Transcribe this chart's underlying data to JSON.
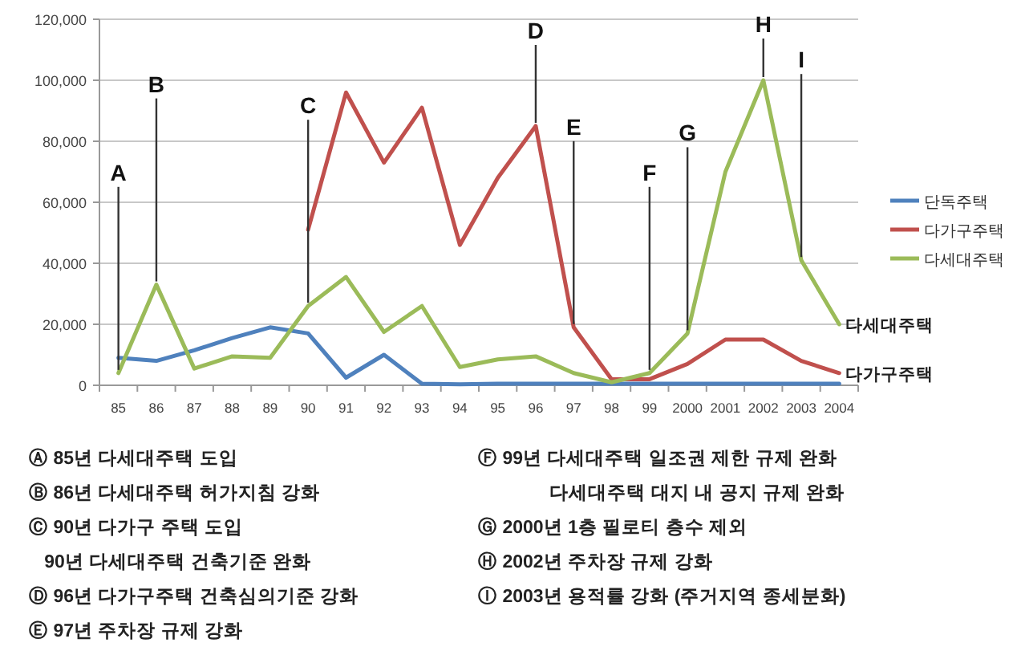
{
  "chart_data": {
    "type": "line",
    "categories": [
      "85",
      "86",
      "87",
      "88",
      "89",
      "90",
      "91",
      "92",
      "93",
      "94",
      "95",
      "96",
      "97",
      "98",
      "99",
      "2000",
      "2001",
      "2002",
      "2003",
      "2004"
    ],
    "series": [
      {
        "name": "단독주택",
        "color": "#4f81bd",
        "values": [
          9000,
          8000,
          11500,
          15500,
          19000,
          17000,
          2500,
          10000,
          500,
          300,
          500,
          500,
          500,
          500,
          500,
          500,
          500,
          500,
          500,
          500
        ]
      },
      {
        "name": "다가구주택",
        "color": "#c0504d",
        "values": [
          null,
          null,
          null,
          null,
          null,
          51000,
          96000,
          73000,
          91000,
          46000,
          68000,
          85000,
          19000,
          2000,
          2000,
          7000,
          15000,
          15000,
          8000,
          4000
        ]
      },
      {
        "name": "다세대주택",
        "color": "#9bbb59",
        "values": [
          4000,
          33000,
          5500,
          9500,
          9000,
          26000,
          35500,
          17500,
          26000,
          6000,
          8500,
          9500,
          4000,
          1000,
          4000,
          17000,
          70000,
          100000,
          41000,
          20000
        ]
      }
    ],
    "ylim": [
      0,
      120000
    ],
    "yticks": [
      0,
      {
        "value": 20000,
        "label": "20,000"
      },
      {
        "value": 40000,
        "label": "40,000"
      },
      {
        "value": 60000,
        "label": "60,000"
      },
      {
        "value": 80000,
        "label": "80,000"
      },
      {
        "value": 100000,
        "label": "100,000"
      },
      {
        "value": 120000,
        "label": "120,000"
      }
    ],
    "grid": "y",
    "legend": "right",
    "marker": "none",
    "line_style": "solid",
    "annotations": [
      {
        "text": "A",
        "x": "85",
        "y": 4000
      },
      {
        "text": "B",
        "x": "86",
        "y": 33000
      },
      {
        "text": "C",
        "x": "90",
        "y": 26000
      },
      {
        "text": "D",
        "x": "96",
        "y": 85000
      },
      {
        "text": "E",
        "x": "97",
        "y": 19000
      },
      {
        "text": "F",
        "x": "99",
        "y": 4000
      },
      {
        "text": "G",
        "x": "2000",
        "y": 17000
      },
      {
        "text": "H",
        "x": "2002",
        "y": 100000
      },
      {
        "text": "I",
        "x": "2003",
        "y": 41000
      },
      {
        "text": "다세대주택",
        "x": "2004",
        "y": 20000
      },
      {
        "text": "다가구주택",
        "x": "2004",
        "y": 4000
      },
      "Ⓐ 85년 다세대주택 도입",
      "Ⓑ 86년 다세대주택 허가지침 강화",
      "Ⓒ 90년 다가구 주택 도입",
      "   90년 다세대주택 건축기준 완화",
      "Ⓓ 96년 다가구주택 건축심의기준 강화",
      "Ⓔ 97년 주차장 규제 강화",
      "Ⓕ 99년 다세대주택 일조권 제한 규제 완화",
      "              다세대주택 대지 내 공지 규제 완화",
      "Ⓖ 2000년 1층 필로티 층수 제외",
      "Ⓗ 2002년 주차장 규제 강화",
      "Ⓘ 2003년 용적률 강화 (주거지역 종세분화)"
    ]
  }
}
